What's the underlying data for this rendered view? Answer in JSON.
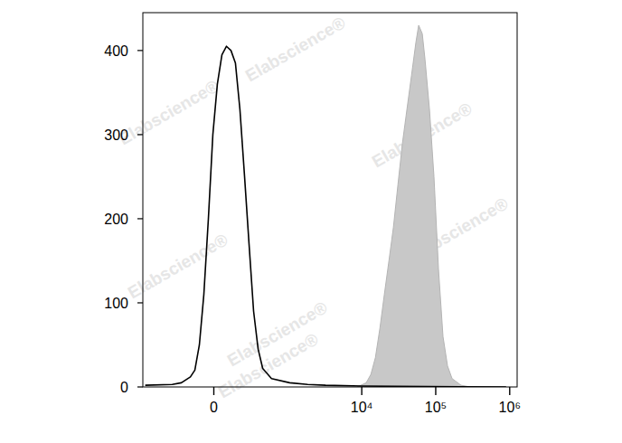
{
  "chart_data": {
    "type": "line",
    "watermark": "Elabscience®",
    "log": "x",
    "xlim": [
      -900,
      1260000
    ],
    "xticks": [
      0,
      {
        "value": 10000,
        "label": "10⁴"
      },
      {
        "value": 100000,
        "label": "10⁵"
      },
      {
        "value": 1000000,
        "label": "10⁶"
      }
    ],
    "ylim": [
      0,
      445
    ],
    "yticks": [
      0,
      100,
      200,
      300,
      400
    ],
    "grid": false,
    "series": [
      {
        "type": "area",
        "color": "#c8c8c8",
        "x": [
          8700,
          11500,
          13300,
          15300,
          17600,
          20200,
          23300,
          26800,
          30800,
          35500,
          40800,
          47000,
          54000,
          58800,
          65800,
          71500,
          82300,
          94700,
          109000,
          125400,
          144300,
          166200,
          220000,
          291300
        ],
        "values": [
          0,
          5,
          15,
          35,
          70,
          110,
          150,
          190,
          240,
          290,
          330,
          370,
          410,
          430,
          420,
          390,
          330,
          250,
          140,
          60,
          25,
          10,
          2,
          0
        ]
      },
      {
        "type": "line",
        "color": "#000000",
        "x": [
          -834,
          -337,
          -238,
          -159,
          -125,
          -93,
          -63,
          -34,
          -6,
          22,
          51,
          81,
          112,
          145,
          181,
          222,
          266,
          316,
          372,
          436,
          586,
          1050,
          1850,
          3240,
          10000,
          894000
        ],
        "values": [
          2,
          3,
          5,
          12,
          20,
          50,
          110,
          200,
          300,
          360,
          395,
          405,
          400,
          385,
          330,
          250,
          170,
          90,
          45,
          22,
          10,
          5,
          3,
          2,
          1,
          0
        ]
      }
    ]
  }
}
